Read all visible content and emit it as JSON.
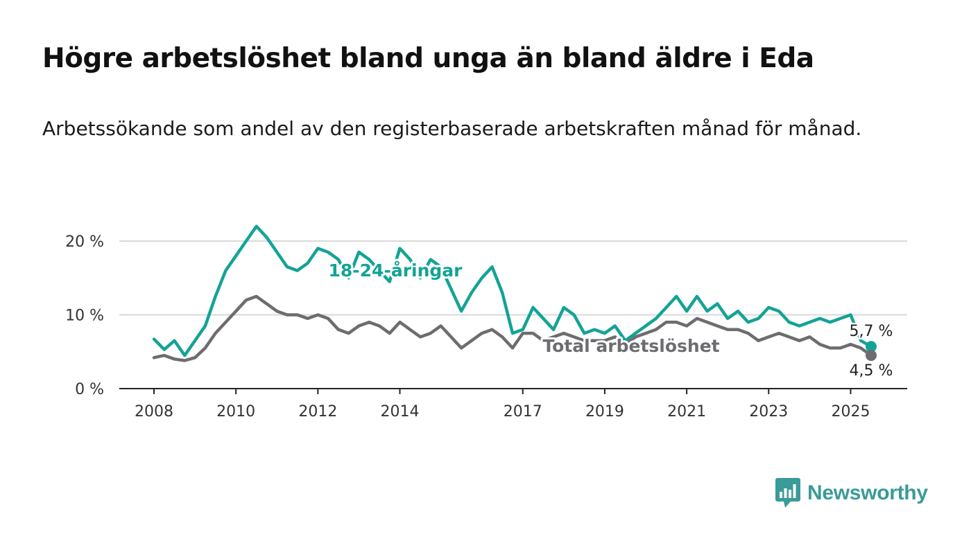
{
  "header": {
    "title": "Högre arbetslöshet bland unga än bland äldre i Eda",
    "subtitle": "Arbetssökande som andel av den registerbaserade arbetskraften månad för månad."
  },
  "brand": {
    "name": "Newsworthy",
    "icon": "newsworthy-chart-logo-icon",
    "color": "#3a9b97"
  },
  "chart_data": {
    "type": "line",
    "title": "Högre arbetslöshet bland unga än bland äldre i Eda",
    "subtitle": "Arbetssökande som andel av den registerbaserade arbetskraften månad för månad.",
    "xlabel": "",
    "ylabel": "",
    "x_tick_labels": [
      "2008",
      "2010",
      "2012",
      "2014",
      "2017",
      "2019",
      "2021",
      "2023",
      "2025"
    ],
    "x_tick_values": [
      2008.0,
      2010.0,
      2012.0,
      2014.0,
      2017.0,
      2019.0,
      2021.0,
      2023.0,
      2025.0
    ],
    "y_tick_labels": [
      "0 %",
      "10 %",
      "20 %"
    ],
    "y_tick_values": [
      0,
      10,
      20
    ],
    "xlim": [
      2008,
      2025.5
    ],
    "ylim": [
      0,
      22
    ],
    "grid": "horizontal",
    "legend": "none; series labelled inline",
    "series": [
      {
        "name": "18-24-åringar",
        "color": "#13a396",
        "label_text": "18-24-åringar",
        "end_label": "5,7 %",
        "points": [
          [
            2008.0,
            6.7
          ],
          [
            2008.25,
            5.3
          ],
          [
            2008.5,
            6.5
          ],
          [
            2008.75,
            4.5
          ],
          [
            2009.0,
            6.5
          ],
          [
            2009.25,
            8.5
          ],
          [
            2009.5,
            12.5
          ],
          [
            2009.75,
            16
          ],
          [
            2010.0,
            18
          ],
          [
            2010.25,
            20
          ],
          [
            2010.5,
            22
          ],
          [
            2010.75,
            20.5
          ],
          [
            2011.0,
            18.5
          ],
          [
            2011.25,
            16.5
          ],
          [
            2011.5,
            16
          ],
          [
            2011.75,
            17
          ],
          [
            2012.0,
            19
          ],
          [
            2012.25,
            18.5
          ],
          [
            2012.5,
            17.5
          ],
          [
            2012.75,
            15
          ],
          [
            2013.0,
            18.5
          ],
          [
            2013.25,
            17.5
          ],
          [
            2013.5,
            16
          ],
          [
            2013.75,
            14.5
          ],
          [
            2014.0,
            19
          ],
          [
            2014.25,
            17.5
          ],
          [
            2014.5,
            15
          ],
          [
            2014.75,
            17.5
          ],
          [
            2015.0,
            16.5
          ],
          [
            2015.25,
            13.5
          ],
          [
            2015.5,
            10.5
          ],
          [
            2015.75,
            13
          ],
          [
            2016.0,
            15
          ],
          [
            2016.25,
            16.5
          ],
          [
            2016.5,
            13
          ],
          [
            2016.75,
            7.5
          ],
          [
            2017.0,
            8
          ],
          [
            2017.25,
            11
          ],
          [
            2017.5,
            9.5
          ],
          [
            2017.75,
            8
          ],
          [
            2018.0,
            11
          ],
          [
            2018.25,
            10
          ],
          [
            2018.5,
            7.5
          ],
          [
            2018.75,
            8
          ],
          [
            2019.0,
            7.5
          ],
          [
            2019.25,
            8.5
          ],
          [
            2019.5,
            6.5
          ],
          [
            2019.75,
            7.5
          ],
          [
            2020.0,
            8.5
          ],
          [
            2020.25,
            9.5
          ],
          [
            2020.5,
            11
          ],
          [
            2020.75,
            12.5
          ],
          [
            2021.0,
            10.5
          ],
          [
            2021.25,
            12.5
          ],
          [
            2021.5,
            10.5
          ],
          [
            2021.75,
            11.5
          ],
          [
            2022.0,
            9.5
          ],
          [
            2022.25,
            10.5
          ],
          [
            2022.5,
            9
          ],
          [
            2022.75,
            9.5
          ],
          [
            2023.0,
            11
          ],
          [
            2023.25,
            10.5
          ],
          [
            2023.5,
            9
          ],
          [
            2023.75,
            8.5
          ],
          [
            2024.0,
            9
          ],
          [
            2024.25,
            9.5
          ],
          [
            2024.5,
            9
          ],
          [
            2024.75,
            9.5
          ],
          [
            2025.0,
            10
          ],
          [
            2025.25,
            6.5
          ],
          [
            2025.5,
            5.7
          ]
        ]
      },
      {
        "name": "Total arbetslöshet",
        "color": "#6e6c70",
        "label_text": "Total arbetslöshet",
        "end_label": "4,5 %",
        "points": [
          [
            2008.0,
            4.2
          ],
          [
            2008.25,
            4.5
          ],
          [
            2008.5,
            4.0
          ],
          [
            2008.75,
            3.8
          ],
          [
            2009.0,
            4.2
          ],
          [
            2009.25,
            5.5
          ],
          [
            2009.5,
            7.5
          ],
          [
            2009.75,
            9
          ],
          [
            2010.0,
            10.5
          ],
          [
            2010.25,
            12
          ],
          [
            2010.5,
            12.5
          ],
          [
            2010.75,
            11.5
          ],
          [
            2011.0,
            10.5
          ],
          [
            2011.25,
            10
          ],
          [
            2011.5,
            10
          ],
          [
            2011.75,
            9.5
          ],
          [
            2012.0,
            10
          ],
          [
            2012.25,
            9.5
          ],
          [
            2012.5,
            8
          ],
          [
            2012.75,
            7.5
          ],
          [
            2013.0,
            8.5
          ],
          [
            2013.25,
            9
          ],
          [
            2013.5,
            8.5
          ],
          [
            2013.75,
            7.5
          ],
          [
            2014.0,
            9
          ],
          [
            2014.25,
            8
          ],
          [
            2014.5,
            7
          ],
          [
            2014.75,
            7.5
          ],
          [
            2015.0,
            8.5
          ],
          [
            2015.25,
            7
          ],
          [
            2015.5,
            5.5
          ],
          [
            2015.75,
            6.5
          ],
          [
            2016.0,
            7.5
          ],
          [
            2016.25,
            8
          ],
          [
            2016.5,
            7
          ],
          [
            2016.75,
            5.5
          ],
          [
            2017.0,
            7.5
          ],
          [
            2017.25,
            7.5
          ],
          [
            2017.5,
            6.5
          ],
          [
            2017.75,
            7
          ],
          [
            2018.0,
            7.5
          ],
          [
            2018.25,
            7
          ],
          [
            2018.5,
            6.5
          ],
          [
            2018.75,
            6.5
          ],
          [
            2019.0,
            6.5
          ],
          [
            2019.25,
            7
          ],
          [
            2019.5,
            6
          ],
          [
            2019.75,
            7
          ],
          [
            2020.0,
            7.5
          ],
          [
            2020.25,
            8
          ],
          [
            2020.5,
            9
          ],
          [
            2020.75,
            9
          ],
          [
            2021.0,
            8.5
          ],
          [
            2021.25,
            9.5
          ],
          [
            2021.5,
            9
          ],
          [
            2021.75,
            8.5
          ],
          [
            2022.0,
            8
          ],
          [
            2022.25,
            8
          ],
          [
            2022.5,
            7.5
          ],
          [
            2022.75,
            6.5
          ],
          [
            2023.0,
            7
          ],
          [
            2023.25,
            7.5
          ],
          [
            2023.5,
            7
          ],
          [
            2023.75,
            6.5
          ],
          [
            2024.0,
            7
          ],
          [
            2024.25,
            6
          ],
          [
            2024.5,
            5.5
          ],
          [
            2024.75,
            5.5
          ],
          [
            2025.0,
            6
          ],
          [
            2025.25,
            5.5
          ],
          [
            2025.5,
            4.5
          ]
        ]
      }
    ]
  }
}
